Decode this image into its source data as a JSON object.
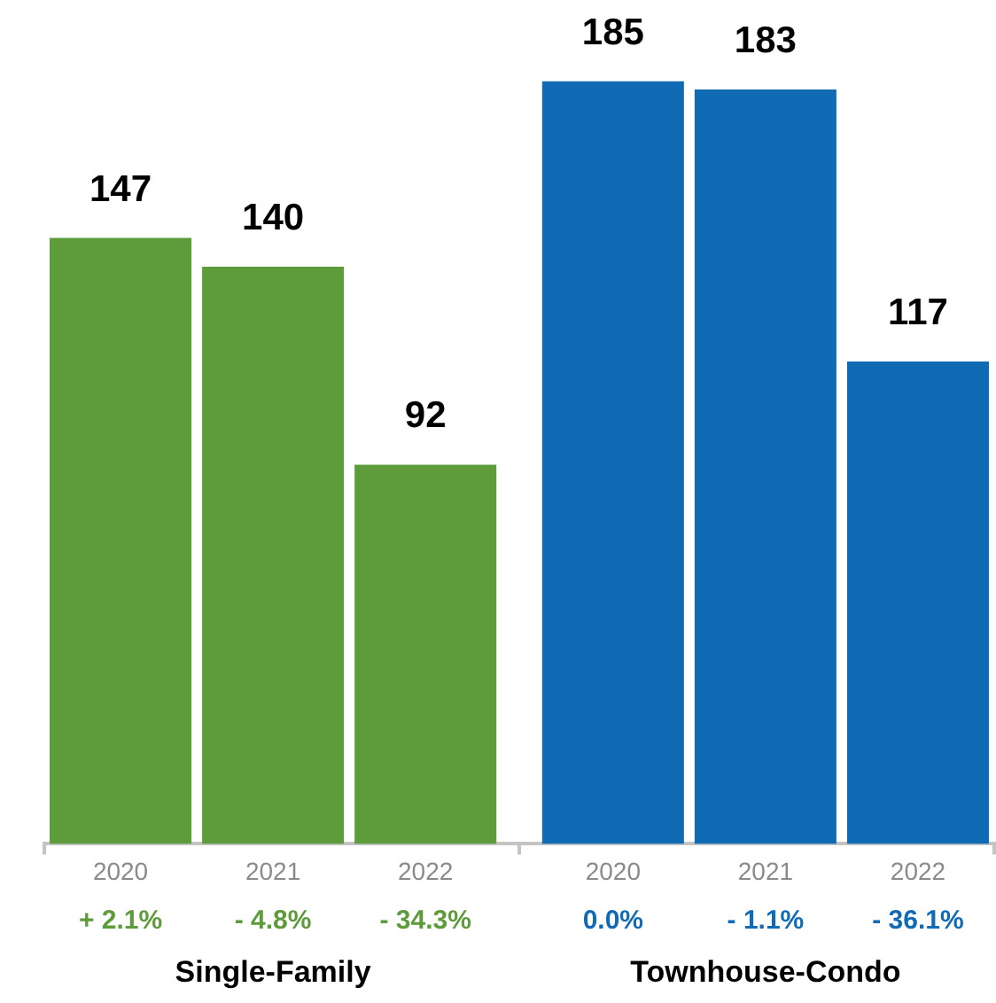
{
  "chart_data": {
    "type": "bar",
    "categories": [
      "2020",
      "2021",
      "2022",
      "2020",
      "2021",
      "2022"
    ],
    "series": [
      {
        "color": "#5e9b3a",
        "values": [
          147,
          140,
          92,
          null,
          null,
          null
        ]
      },
      {
        "color": "#116ab4",
        "values": [
          null,
          null,
          null,
          185,
          183,
          117
        ]
      }
    ],
    "data_labels": true,
    "tick_labels": "x",
    "annotations": [
      "+ 2.1%",
      "- 4.8%",
      "- 34.3%",
      "0.0%",
      "- 1.1%",
      "- 36.1%",
      "Single-Family",
      "Townhouse-Condo"
    ]
  }
}
